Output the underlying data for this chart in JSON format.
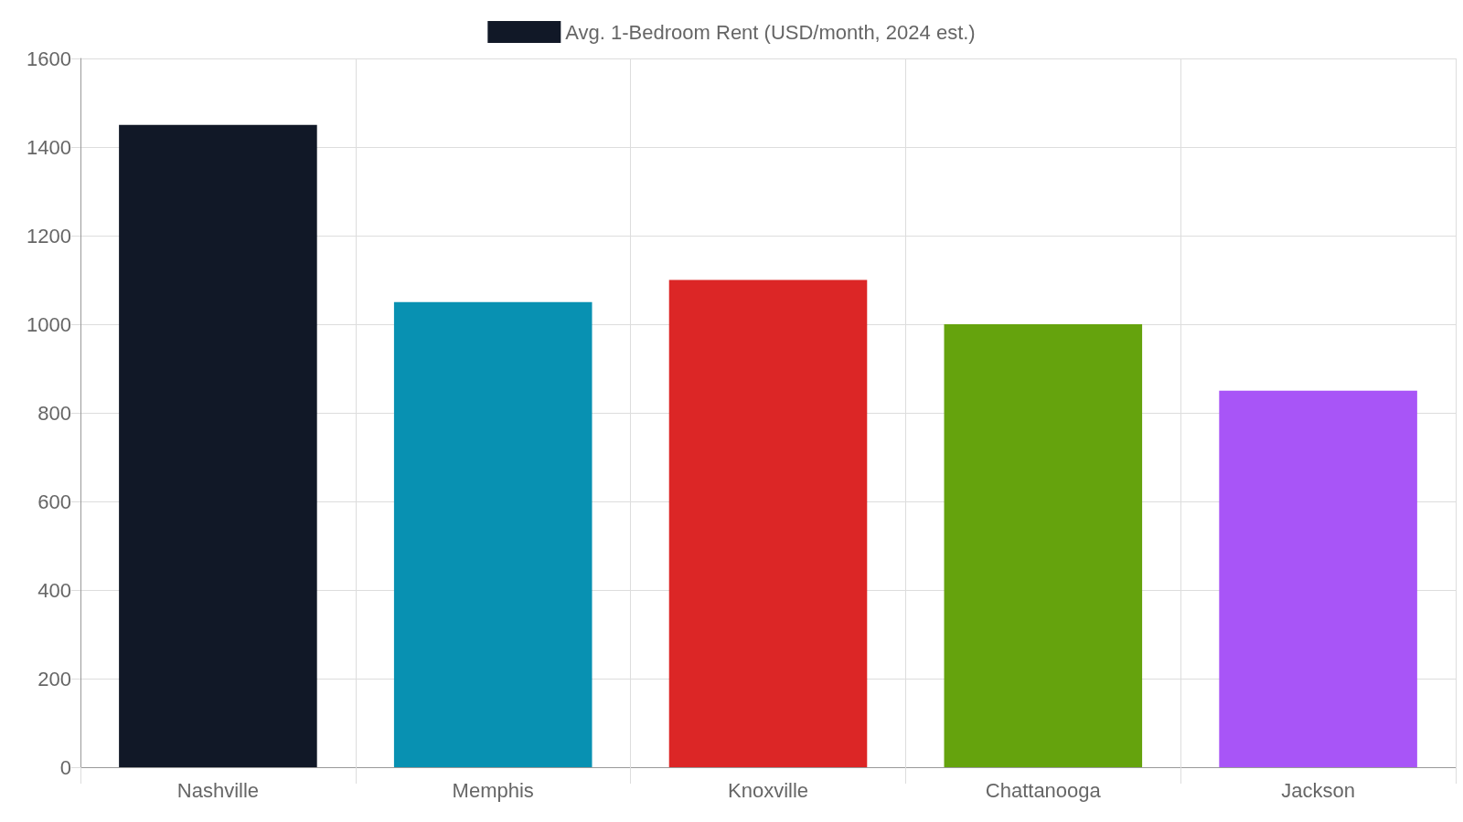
{
  "chart_data": {
    "type": "bar",
    "categories": [
      "Nashville",
      "Memphis",
      "Knoxville",
      "Chattanooga",
      "Jackson"
    ],
    "series": [
      {
        "name": "Avg. 1-Bedroom Rent (USD/month, 2024 est.)",
        "colors": [
          "#111827",
          "#0891b2",
          "#dc2626",
          "#65a30d",
          "#a855f7"
        ],
        "values": [
          1450,
          1050,
          1100,
          1000,
          850
        ]
      }
    ],
    "ylim": [
      0,
      1600
    ],
    "yticks": [
      0,
      200,
      400,
      600,
      800,
      1000,
      1200,
      1400,
      1600
    ],
    "grid": true,
    "legend": "top"
  }
}
